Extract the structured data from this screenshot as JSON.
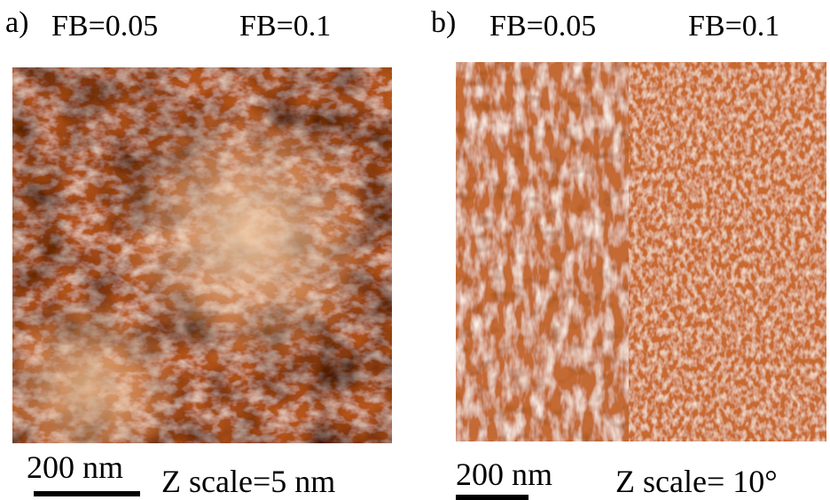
{
  "panel_a": {
    "label": "a)",
    "left_condition": "FB=0.05",
    "right_condition": "FB=0.1",
    "scale_bar_label": "200 nm",
    "z_scale": "Z scale=5 nm"
  },
  "panel_b": {
    "label": "b)",
    "left_condition": "FB=0.05",
    "right_condition": "FB=0.1",
    "scale_bar_label": "200 nm",
    "z_scale": "Z scale= 10°"
  },
  "colors": {
    "dark": "#3a0a00",
    "mid": "#b4541c",
    "light": "#fbe6cf"
  }
}
